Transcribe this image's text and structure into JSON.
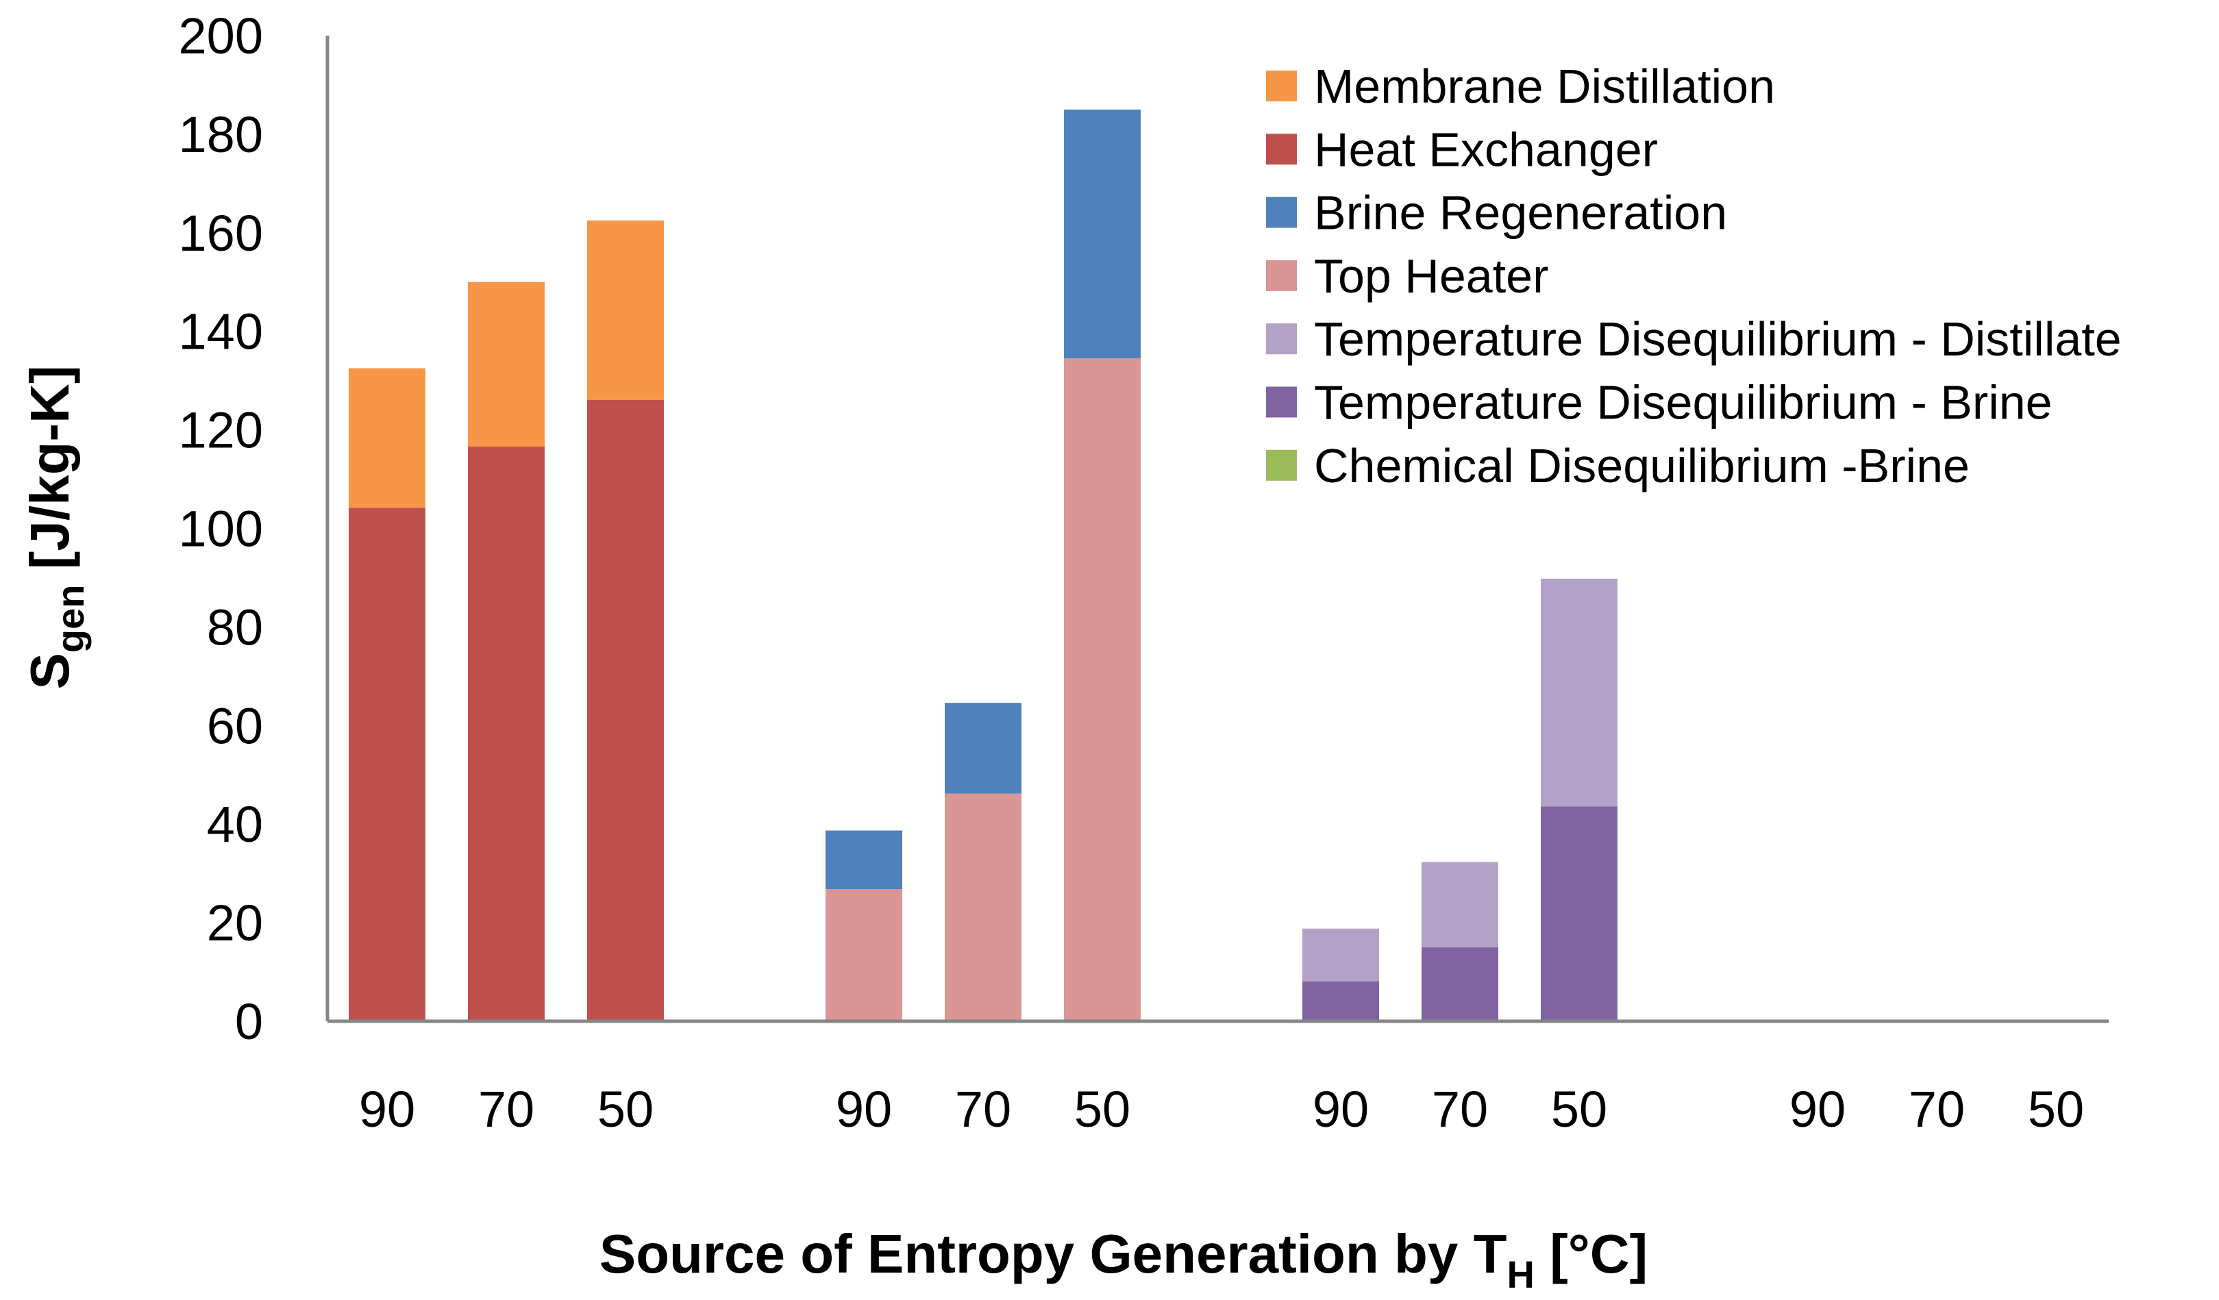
{
  "chart_data": {
    "type": "bar",
    "stacked": true,
    "title": "",
    "xlabel": "Source of Entropy Generation by T",
    "xlabel_sub": "H",
    "xlabel_unit": " [°C]",
    "ylabel": "S",
    "ylabel_sub": "gen",
    "ylabel_unit": "  [J/kg-K]",
    "ylim": [
      0,
      200
    ],
    "yticks": [
      0,
      20,
      40,
      60,
      80,
      100,
      120,
      140,
      160,
      180,
      200
    ],
    "categories": [
      "90",
      "70",
      "50",
      "90",
      "70",
      "50",
      "90",
      "70",
      "50",
      "90",
      "70",
      "50"
    ],
    "legend_position": "top-right",
    "grid": false,
    "series": [
      {
        "name": "Membrane Distillation",
        "color": "#F79646",
        "values": [
          28.3,
          33.4,
          36.4,
          0,
          0,
          0,
          0,
          0,
          0,
          0,
          0,
          0
        ]
      },
      {
        "name": "Heat Exchanger",
        "color": "#C0504D",
        "values": [
          104.2,
          116.6,
          126.1,
          0,
          0,
          0,
          0,
          0,
          0,
          0,
          0,
          0
        ]
      },
      {
        "name": "Brine Regeneration",
        "color": "#4F81BD",
        "values": [
          0,
          0,
          0,
          11.9,
          18.4,
          50.5,
          0,
          0,
          0,
          0,
          0,
          0
        ]
      },
      {
        "name": "Top Heater",
        "color": "#D99694",
        "values": [
          0,
          0,
          0,
          26.8,
          46.2,
          134.5,
          0,
          0,
          0,
          0,
          0,
          0
        ]
      },
      {
        "name": "Temperature Disequilibrium - Distillate",
        "color": "#B3A2C7",
        "values": [
          0,
          0,
          0,
          0,
          0,
          0,
          10.7,
          17.3,
          46.2,
          0,
          0,
          0
        ]
      },
      {
        "name": "Temperature Disequilibrium - Brine",
        "color": "#8064A2",
        "values": [
          0,
          0,
          0,
          0,
          0,
          0,
          8.1,
          15.0,
          43.6,
          0,
          0,
          0
        ]
      },
      {
        "name": "Chemical Disequilibrium -Brine",
        "color": "#9BBB59",
        "values": [
          0,
          0,
          0,
          0,
          0,
          0,
          0,
          0,
          0,
          0.3,
          0.05,
          0.02
        ]
      }
    ]
  }
}
